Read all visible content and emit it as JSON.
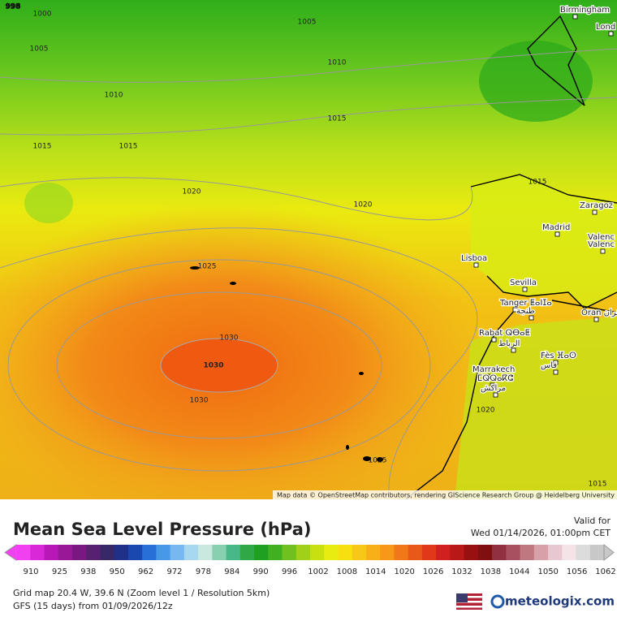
{
  "map": {
    "isobar_labels": [
      "998",
      "1000",
      "1005",
      "1005",
      "1010",
      "1010",
      "1015",
      "1015",
      "1015",
      "1020",
      "1020",
      "1015",
      "1025",
      "1030",
      "1030",
      "1030",
      "1020",
      "1025",
      "1015"
    ],
    "cities": [
      "Birmingham",
      "Lond",
      "Zaragoz",
      "Madrid",
      "Valenc",
      "Valenc",
      "Lisboa",
      "Sevilla",
      "Tanger ⵟⴰⵏⵊⴰ",
      "طنجة",
      "Rabat ⵕⴱⴰⵟ",
      "الرباط",
      "Fès ⴼⴰⵙ",
      "فاس",
      "Oran وهران",
      "Marrakech",
      "ⵎⵕⵕⴰⴽⵛ",
      "مراكش"
    ],
    "attribution": "Map data © OpenStreetMap contributors, rendering GIScience Research Group @ Heidelberg University"
  },
  "header": {
    "title": "Mean Sea Level Pressure (hPa)",
    "valid_label": "Valid for",
    "valid_time": "Wed 01/14/2026, 01:00pm CET"
  },
  "colorbar": {
    "ticks": [
      "910",
      "925",
      "938",
      "950",
      "962",
      "972",
      "978",
      "984",
      "990",
      "996",
      "1002",
      "1008",
      "1014",
      "1020",
      "1026",
      "1032",
      "1038",
      "1044",
      "1050",
      "1056",
      "1062"
    ]
  },
  "footer": {
    "grid_info": "Grid map 20.4 W, 39.6 N (Zoom level 1 / Resolution 5km)",
    "model_run": "GFS (15 days) from 01/09/2026/12z",
    "logo": "meteologix.com"
  }
}
